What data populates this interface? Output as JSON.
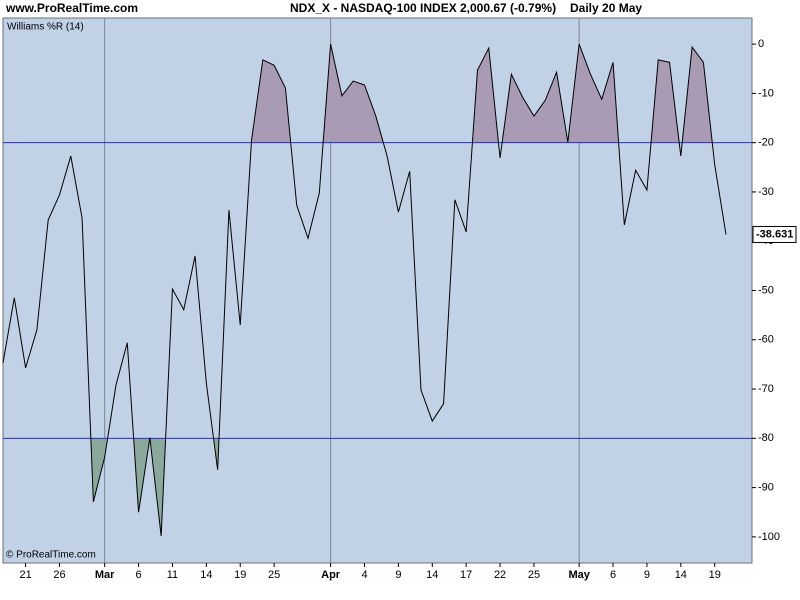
{
  "chart_data": {
    "type": "line",
    "site": "www.ProRealTime.com",
    "title": "NDX_X - NASDAQ-100 INDEX",
    "price": "2,000.67 (-0.79%)",
    "period": "Daily  20 May",
    "indicator": "Williams %R (14)",
    "copyright": "© ProRealTime.com",
    "categories": [
      null,
      null,
      "21",
      null,
      null,
      "26",
      null,
      null,
      null,
      "Mar",
      null,
      null,
      "6",
      null,
      null,
      "11",
      null,
      null,
      "14",
      null,
      null,
      "19",
      null,
      null,
      "25",
      null,
      null,
      null,
      null,
      "Apr",
      null,
      null,
      "4",
      null,
      null,
      "9",
      null,
      null,
      "14",
      null,
      null,
      "17",
      null,
      null,
      "22",
      null,
      null,
      "25",
      null,
      null,
      null,
      "May",
      null,
      null,
      "6",
      null,
      null,
      "9",
      null,
      null,
      "14",
      null,
      null,
      "19",
      null
    ],
    "values": [
      -64.7,
      -51.5,
      -65.7,
      -58,
      -35.7,
      -30.6,
      -22.7,
      -35.3,
      -92.9,
      -83.8,
      -69.2,
      -60.6,
      -95,
      -79.9,
      -99.8,
      -49.7,
      -53.9,
      -43,
      -68.8,
      -86.4,
      -33.7,
      -57,
      -19.5,
      -3.2,
      -4.3,
      -8.9,
      -32.7,
      -39.4,
      -30.2,
      0,
      -10.5,
      -7.5,
      -8.3,
      -14.6,
      -22.7,
      -34.1,
      -25.8,
      -70.2,
      -76.5,
      -73,
      -31.6,
      -38.1,
      -5.3,
      -0.8,
      -23.1,
      -6.1,
      -10.8,
      -14.6,
      -11.4,
      -5.7,
      -19.9,
      0,
      -6.1,
      -11.2,
      -3.7,
      -36.7,
      -25.6,
      -29.6,
      -3.2,
      -3.7,
      -22.7,
      -0.6,
      -3.7,
      -24.5,
      -38.631
    ],
    "color": "#000000",
    "ylim": [
      -105.3,
      5.3
    ],
    "yticks": [
      0,
      -10,
      -20,
      -30,
      -40,
      -50,
      -60,
      -70,
      -80,
      -90,
      -100
    ],
    "month_lines": [
      "Mar",
      "Apr",
      "May"
    ],
    "levels": [
      -20,
      -80
    ],
    "level_color": "#2a2acc",
    "upper_fill": "#a99bb3",
    "lower_fill": "#8aa89c",
    "plot_background": "#c1d1e6"
  }
}
